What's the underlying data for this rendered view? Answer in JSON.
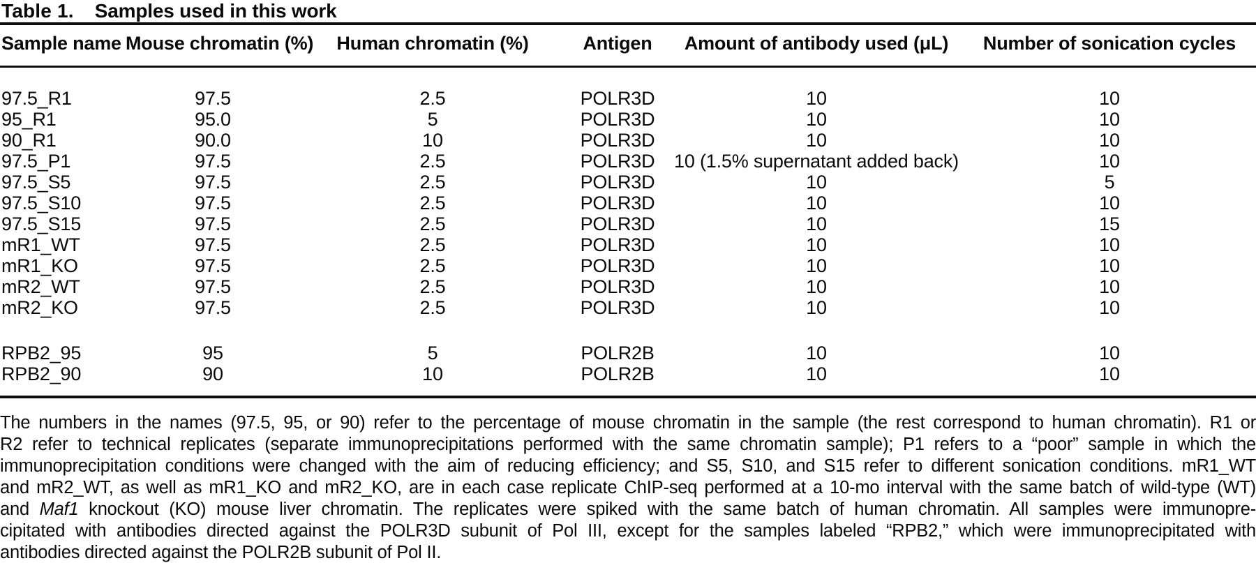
{
  "title": {
    "label": "Table 1.",
    "text": "Samples used in this work"
  },
  "table": {
    "columns": [
      {
        "key": "sample",
        "label": "Sample name"
      },
      {
        "key": "mouse",
        "label": "Mouse chromatin (%)"
      },
      {
        "key": "human",
        "label": "Human chromatin (%)"
      },
      {
        "key": "antigen",
        "label": "Antigen"
      },
      {
        "key": "antibody",
        "label": "Amount of antibody used (μL)"
      },
      {
        "key": "cycles",
        "label": "Number of sonication cycles"
      }
    ],
    "groups": [
      {
        "rows": [
          [
            "97.5_R1",
            "97.5",
            "2.5",
            "POLR3D",
            "10",
            "10"
          ],
          [
            "95_R1",
            "95.0",
            "5",
            "POLR3D",
            "10",
            "10"
          ],
          [
            "90_R1",
            "90.0",
            "10",
            "POLR3D",
            "10",
            "10"
          ],
          [
            "97.5_P1",
            "97.5",
            "2.5",
            "POLR3D",
            "10 (1.5% supernatant added back)",
            "10"
          ],
          [
            "97.5_S5",
            "97.5",
            "2.5",
            "POLR3D",
            "10",
            "5"
          ],
          [
            "97.5_S10",
            "97.5",
            "2.5",
            "POLR3D",
            "10",
            "10"
          ],
          [
            "97.5_S15",
            "97.5",
            "2.5",
            "POLR3D",
            "10",
            "15"
          ],
          [
            "mR1_WT",
            "97.5",
            "2.5",
            "POLR3D",
            "10",
            "10"
          ],
          [
            "mR1_KO",
            "97.5",
            "2.5",
            "POLR3D",
            "10",
            "10"
          ],
          [
            "mR2_WT",
            "97.5",
            "2.5",
            "POLR3D",
            "10",
            "10"
          ],
          [
            "mR2_KO",
            "97.5",
            "2.5",
            "POLR3D",
            "10",
            "10"
          ]
        ]
      },
      {
        "rows": [
          [
            "RPB2_95",
            "95",
            "5",
            "POLR2B",
            "10",
            "10"
          ],
          [
            "RPB2_90",
            "90",
            "10",
            "POLR2B",
            "10",
            "10"
          ]
        ]
      }
    ]
  },
  "footnote": {
    "lines": [
      [
        {
          "text": "The numbers in the names (97.5, 95, or 90) refer to the percentage of mouse chromatin in the sample (the rest correspond to human chromatin). R1 or"
        }
      ],
      [
        {
          "text": "R2 refer to technical replicates (separate immunoprecipitations performed with the same chromatin sample); P1 refers to a “poor” sample in which the"
        }
      ],
      [
        {
          "text": "immunoprecipitation conditions were changed with the aim of reducing efficiency; and S5, S10, and S15 refer to different sonication conditions. mR1_WT"
        }
      ],
      [
        {
          "text": "and mR2_WT, as well as mR1_KO and mR2_KO, are in each case replicate ChIP-seq performed at a 10-mo interval with the same batch of wild-type (WT)"
        }
      ],
      [
        {
          "text": "and "
        },
        {
          "text": "Maf1",
          "italic": true
        },
        {
          "text": " knockout (KO) mouse liver chromatin. The replicates were spiked with the same batch of human chromatin. All samples were immunopre-"
        }
      ],
      [
        {
          "text": "cipitated with antibodies directed against the POLR3D subunit of Pol III, except for the samples labeled “RPB2,” which were immunoprecipitated with"
        }
      ],
      [
        {
          "text": "antibodies directed against the POLR2B subunit of Pol II."
        }
      ]
    ]
  }
}
